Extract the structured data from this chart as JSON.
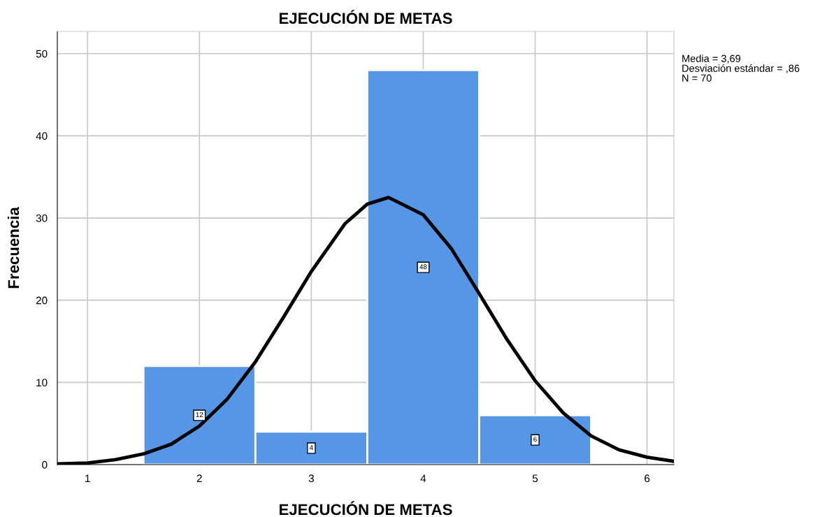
{
  "chart_data": {
    "type": "histogram",
    "title": "EJECUCIÓN DE METAS",
    "xlabel": "EJECUCIÓN DE METAS",
    "ylabel": "Frecuencia",
    "bins": [
      1.5,
      2.5,
      3.5,
      4.5,
      5.5
    ],
    "values": [
      12,
      4,
      48,
      6
    ],
    "color": "#5597e6",
    "value_labels": [
      "12",
      "4",
      "48",
      "6"
    ],
    "series": [
      {
        "type": "line",
        "color": "#000000",
        "x": [
          0.73,
          1.0,
          1.25,
          1.5,
          1.75,
          2.0,
          2.25,
          2.5,
          2.75,
          3.0,
          3.3,
          3.5,
          3.69,
          4.0,
          4.25,
          4.5,
          4.75,
          5.0,
          5.25,
          5.5,
          5.75,
          6.0,
          6.24
        ],
        "values": [
          0.1,
          0.2,
          0.6,
          1.3,
          2.5,
          4.7,
          8.0,
          12.5,
          17.9,
          23.5,
          29.3,
          31.7,
          32.5,
          30.4,
          26.3,
          20.8,
          15.2,
          10.2,
          6.3,
          3.5,
          1.8,
          0.9,
          0.4
        ]
      }
    ],
    "xlim": [
      0.73,
      6.24
    ],
    "xticks": [
      1,
      2,
      3,
      4,
      5,
      6
    ],
    "ylim": [
      0,
      52.7
    ],
    "yticks": [
      0,
      10,
      20,
      30,
      40,
      50
    ],
    "grid": true,
    "annotations": [
      "Media = 3,69",
      "Desviación estándar = ,86",
      "N = 70"
    ]
  }
}
